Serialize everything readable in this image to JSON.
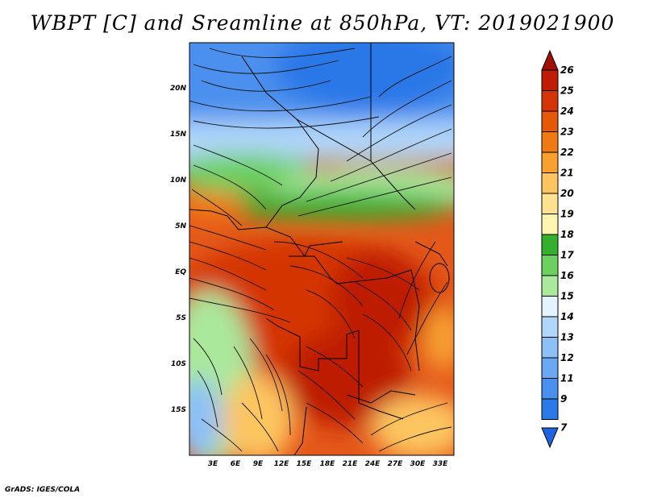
{
  "title": "WBPT [C] and Sreamline at 850hPa, VT: 2019021900",
  "credit": "GrADS: IGES/COLA",
  "map": {
    "lat_labels": [
      "20N",
      "15N",
      "10N",
      "5N",
      "EQ",
      "5S",
      "10S",
      "15S"
    ],
    "lon_labels": [
      "3E",
      "6E",
      "9E",
      "12E",
      "15E",
      "18E",
      "21E",
      "24E",
      "27E",
      "30E",
      "33E"
    ]
  },
  "colorbar": {
    "labels": [
      "7",
      "9",
      "11",
      "12",
      "13",
      "14",
      "15",
      "16",
      "17",
      "18",
      "19",
      "20",
      "21",
      "22",
      "23",
      "24",
      "25",
      "26"
    ],
    "colors": [
      "#1e64e0",
      "#2b78e8",
      "#4b90ee",
      "#6aa8f2",
      "#8cc0f6",
      "#b0d6fa",
      "#e4f4ff",
      "#aae89c",
      "#6cd060",
      "#34b02e",
      "#fff5b0",
      "#fee290",
      "#fdc560",
      "#f8a030",
      "#ef7a14",
      "#e45808",
      "#d43406",
      "#be1c04",
      "#a00f04"
    ]
  }
}
